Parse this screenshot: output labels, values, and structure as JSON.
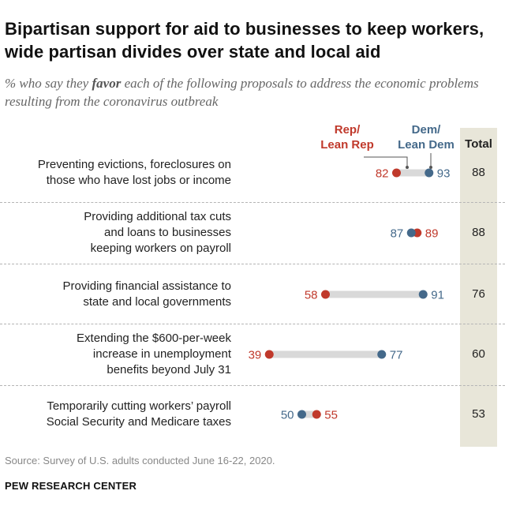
{
  "title": "Bipartisan support for aid to businesses to keep workers, wide partisan divides over state and local aid",
  "subtitle": {
    "prefix": "% who say they ",
    "emphasis": "favor",
    "suffix": " each of the following proposals to address the economic problems resulting from the coronavirus outbreak"
  },
  "legend": {
    "rep_line1": "Rep/",
    "rep_line2": "Lean Rep",
    "dem_line1": "Dem/",
    "dem_line2": "Lean Dem"
  },
  "total_header": "Total",
  "colors": {
    "rep": "#c0392b",
    "dem": "#44698a",
    "connector": "#d9d9d9",
    "total_bg": "#e8e6d9"
  },
  "chart_data": {
    "type": "dot",
    "title": "Bipartisan support for aid to businesses to keep workers, wide partisan divides over state and local aid",
    "xlim": [
      0,
      100
    ],
    "series": [
      {
        "name": "Rep/Lean Rep",
        "values": [
          82,
          89,
          58,
          39,
          55
        ]
      },
      {
        "name": "Dem/Lean Dem",
        "values": [
          93,
          87,
          91,
          77,
          50
        ]
      },
      {
        "name": "Total",
        "values": [
          88,
          88,
          76,
          60,
          53
        ]
      }
    ],
    "rows": [
      {
        "lines": [
          "Preventing evictions, foreclosures on",
          "those who have lost jobs or income"
        ],
        "rep": 82,
        "dem": 93,
        "total": 88
      },
      {
        "lines": [
          "Providing additional tax cuts",
          "and loans to businesses",
          "keeping workers on payroll"
        ],
        "rep": 89,
        "dem": 87,
        "total": 88
      },
      {
        "lines": [
          "Providing financial assistance to",
          "state and local governments"
        ],
        "rep": 58,
        "dem": 91,
        "total": 76
      },
      {
        "lines": [
          "Extending the $600-per-week",
          "increase in unemployment",
          "benefits beyond July 31"
        ],
        "rep": 39,
        "dem": 77,
        "total": 60
      },
      {
        "lines": [
          "Temporarily cutting workers’ payroll",
          "Social Security and Medicare taxes"
        ],
        "rep": 55,
        "dem": 50,
        "total": 53
      }
    ]
  },
  "source": "Source: Survey of U.S. adults conducted June 16-22, 2020.",
  "org": "PEW RESEARCH CENTER"
}
